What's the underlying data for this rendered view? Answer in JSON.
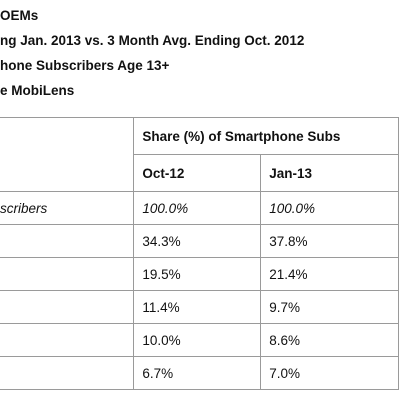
{
  "header": {
    "lines": [
      "OEMs",
      "ng Jan. 2013 vs. 3 Month Avg. Ending Oct. 2012",
      "hone Subscribers Age 13+",
      "e MobiLens"
    ]
  },
  "table": {
    "group_header": "Share (%) of Smartphone Subs",
    "columns": [
      "Oct-12",
      "Jan-13"
    ],
    "rows": [
      {
        "label": "scribers",
        "values": [
          "100.0%",
          "100.0%"
        ]
      },
      {
        "values": [
          "34.3%",
          "37.8%"
        ]
      },
      {
        "values": [
          "19.5%",
          "21.4%"
        ]
      },
      {
        "values": [
          "11.4%",
          "9.7%"
        ]
      },
      {
        "values": [
          "10.0%",
          "8.6%"
        ]
      },
      {
        "values": [
          "6.7%",
          "7.0%"
        ]
      }
    ]
  }
}
